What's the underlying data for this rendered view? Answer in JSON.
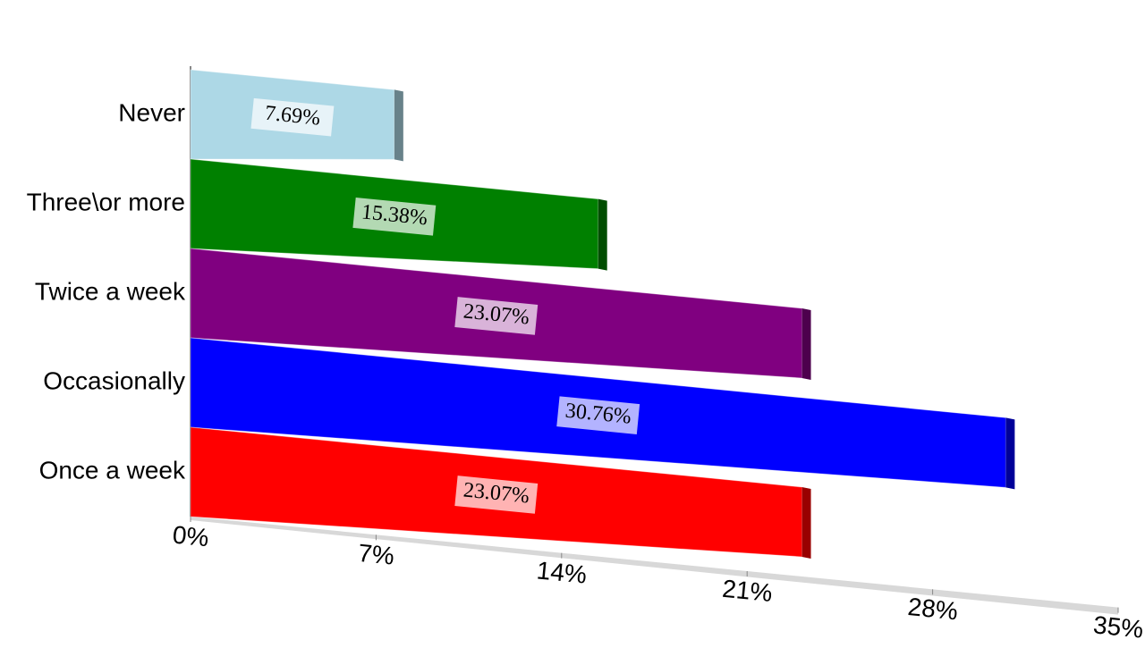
{
  "chart_data": {
    "type": "bar",
    "orientation": "horizontal",
    "categories": [
      "Never",
      "Three\\or more",
      "Twice a week",
      "Occasionally",
      "Once a week"
    ],
    "values": [
      7.69,
      15.38,
      23.07,
      30.76,
      23.07
    ],
    "value_labels": [
      "7.69%",
      "15.38%",
      "23.07%",
      "30.76%",
      "23.07%"
    ],
    "colors": [
      "#add8e6",
      "#008000",
      "#800080",
      "#0000ff",
      "#ff0000"
    ],
    "xlim": [
      0,
      35
    ],
    "xticks": [
      {
        "value": 0,
        "label": "0%"
      },
      {
        "value": 7,
        "label": "7%"
      },
      {
        "value": 14,
        "label": "14%"
      },
      {
        "value": 21,
        "label": "21%"
      },
      {
        "value": 28,
        "label": "28%"
      },
      {
        "value": 35,
        "label": "35%"
      }
    ]
  }
}
